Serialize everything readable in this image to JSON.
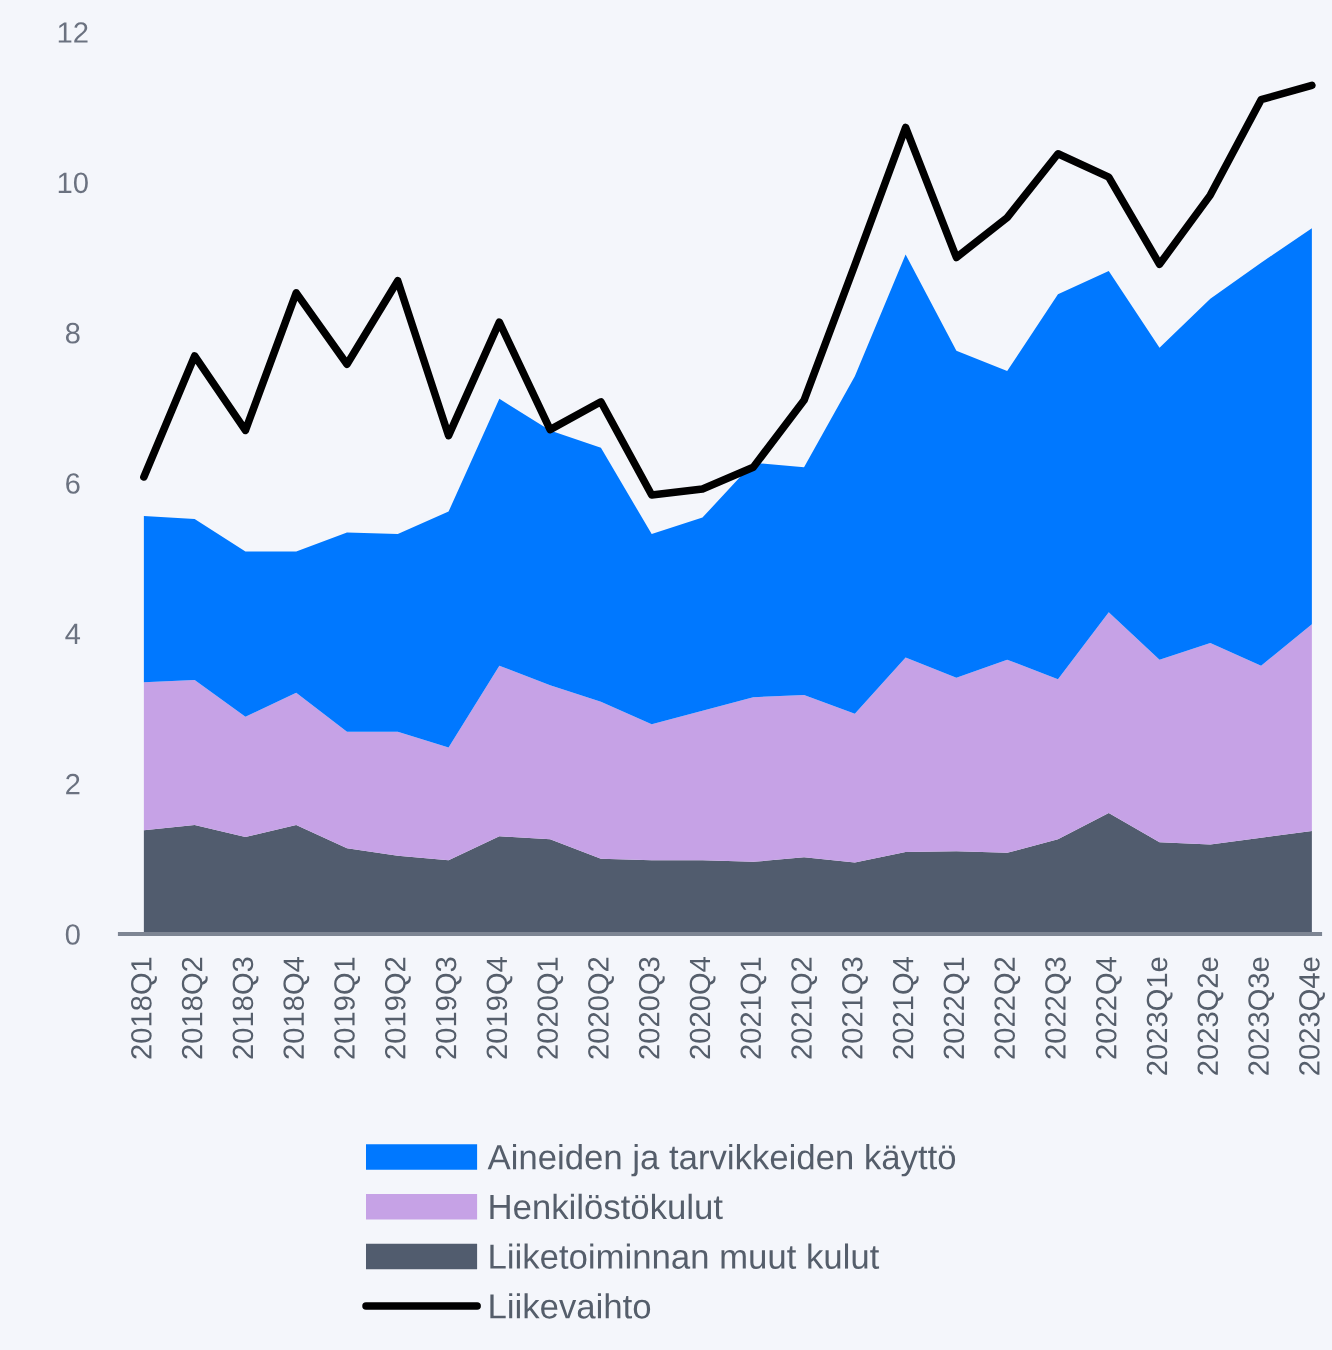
{
  "chart_data": {
    "type": "area",
    "stacked": true,
    "legend": "bottom",
    "categories": [
      "2018Q1",
      "2018Q2",
      "2018Q3",
      "2018Q4",
      "2019Q1",
      "2019Q2",
      "2019Q3",
      "2019Q4",
      "2020Q1",
      "2020Q2",
      "2020Q3",
      "2020Q4",
      "2021Q1",
      "2021Q2",
      "2021Q3",
      "2021Q4",
      "2022Q1",
      "2022Q2",
      "2022Q3",
      "2022Q4",
      "2023Q1e",
      "2023Q2e",
      "2023Q3e",
      "2023Q4e"
    ],
    "ylim": [
      0,
      12
    ],
    "yticks": [
      0,
      2,
      4,
      6,
      8,
      10,
      12
    ],
    "series": [
      {
        "name": "Liiketoiminnan muut kulut",
        "color": "#515c6e",
        "values": [
          1.38,
          1.45,
          1.29,
          1.45,
          1.14,
          1.04,
          0.98,
          1.3,
          1.26,
          1.0,
          0.98,
          0.98,
          0.96,
          1.02,
          0.95,
          1.09,
          1.1,
          1.08,
          1.26,
          1.61,
          1.22,
          1.19,
          1.28,
          1.37
        ]
      },
      {
        "name": "Henkilöstökulut",
        "color": "#c6a2e6",
        "values": [
          1.97,
          1.93,
          1.6,
          1.76,
          1.55,
          1.65,
          1.5,
          2.27,
          2.05,
          2.09,
          1.81,
          1.99,
          2.19,
          2.16,
          1.98,
          2.59,
          2.31,
          2.57,
          2.13,
          2.67,
          2.43,
          2.68,
          2.29,
          2.75
        ]
      },
      {
        "name": "Aineiden ja tarvikkeiden käyttö",
        "color": "#0078ff",
        "values": [
          2.21,
          2.14,
          2.2,
          1.88,
          2.65,
          2.63,
          3.14,
          3.55,
          3.39,
          3.38,
          2.53,
          2.57,
          3.12,
          3.03,
          4.49,
          5.36,
          4.35,
          3.84,
          5.12,
          4.54,
          4.15,
          4.58,
          5.36,
          5.27
        ]
      },
      {
        "name": "Liikevaihto",
        "type": "line",
        "color": "#000000",
        "values": [
          6.08,
          7.69,
          6.7,
          8.53,
          7.58,
          8.69,
          6.63,
          8.14,
          6.71,
          7.08,
          5.84,
          5.92,
          6.21,
          7.1,
          8.9,
          10.73,
          9.0,
          9.53,
          10.38,
          10.07,
          8.91,
          9.83,
          11.1,
          11.29
        ]
      }
    ]
  }
}
